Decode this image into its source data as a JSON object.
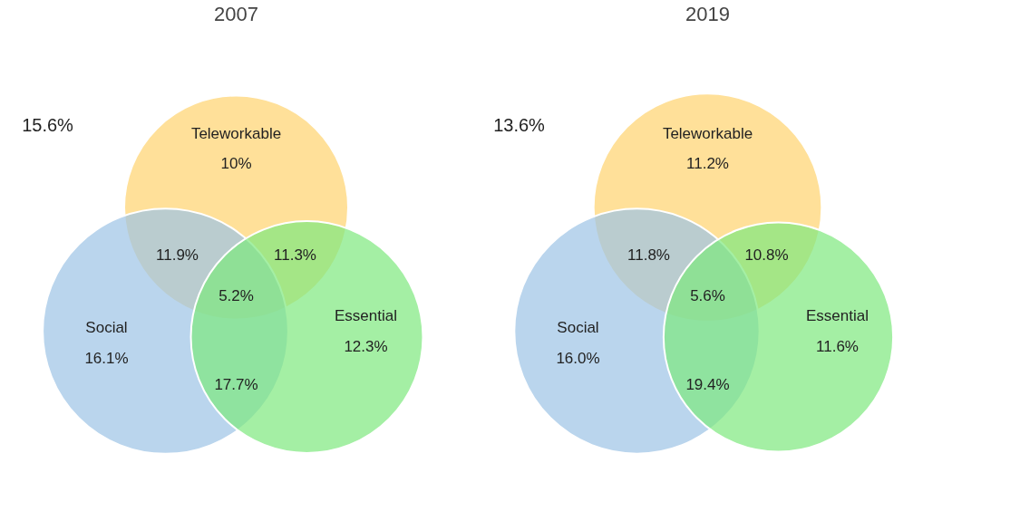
{
  "chart_data": [
    {
      "type": "other",
      "title": "2007",
      "categories": [
        "Teleworkable",
        "Social",
        "Essential"
      ],
      "values": [
        10,
        16.1,
        12.3
      ],
      "value_labels": [
        "10%",
        "16.1%",
        "12.3%"
      ],
      "colors": [
        "#ffd36e",
        "#9dc3e6",
        "#7ee87e"
      ],
      "annotations": [
        "11.9%",
        "11.3%",
        "17.7%",
        "5.2%",
        "15.6%"
      ]
    },
    {
      "type": "other",
      "title": "2019",
      "categories": [
        "Teleworkable",
        "Social",
        "Essential"
      ],
      "values": [
        11.2,
        16.0,
        11.6
      ],
      "value_labels": [
        "11.2%",
        "16.0%",
        "11.6%"
      ],
      "colors": [
        "#ffd36e",
        "#9dc3e6",
        "#7ee87e"
      ],
      "annotations": [
        "11.8%",
        "10.8%",
        "19.4%",
        "5.6%",
        "13.6%"
      ]
    }
  ]
}
